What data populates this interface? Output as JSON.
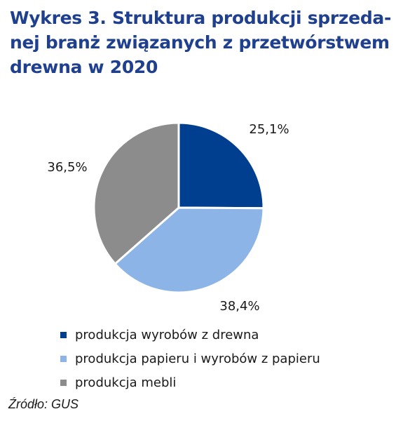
{
  "title_lines": [
    "Wykres 3. Struktura produkcji sprzeda-",
    "nej branż związanych z przetwórstwem",
    "drewna w 2020"
  ],
  "source": "Źródło: GUS",
  "chart_data": {
    "type": "pie",
    "title": "Wykres 3. Struktura produkcji sprzedanej branż związanych z przetwórstwem drewna w 2020",
    "categories": [
      "produkcja wyrobów z drewna",
      "produkcja papieru i wyrobów z papieru",
      "produkcja mebli"
    ],
    "values": [
      25.1,
      38.4,
      36.5
    ],
    "value_labels": [
      "25,1%",
      "38,4%",
      "36,5%"
    ],
    "colors": [
      "#003f8f",
      "#8db4e6",
      "#8c8c8c"
    ],
    "start": "12 o'clock, clockwise",
    "legend_position": "bottom-left"
  }
}
